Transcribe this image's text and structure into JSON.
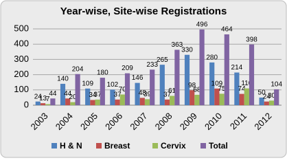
{
  "chart_data": {
    "type": "bar",
    "title": "Year-wise, Site-wise Registrations",
    "categories": [
      "2003",
      "2004",
      "2005",
      "2006",
      "2007",
      "2008",
      "2009",
      "2010",
      "2011",
      "2012"
    ],
    "series": [
      {
        "name": "H & N",
        "color": "#4f81bd",
        "values": [
          24,
          140,
          109,
          102,
          146,
          265,
          330,
          280,
          214,
          50
        ]
      },
      {
        "name": "Breast",
        "color": "#c0504d",
        "values": [
          13,
          44,
          34,
          37,
          48,
          37,
          98,
          109,
          74,
          24
        ]
      },
      {
        "name": "Cervix",
        "color": "#9bbb59",
        "values": [
          7,
          20,
          37,
          70,
          39,
          61,
          68,
          75,
          110,
          30
        ]
      },
      {
        "name": "Total",
        "color": "#8064a2",
        "values": [
          44,
          204,
          180,
          209,
          233,
          363,
          496,
          464,
          398,
          104
        ]
      }
    ],
    "ylim": [
      0,
      500
    ],
    "yticks": [
      0,
      100,
      200,
      300,
      400,
      500
    ],
    "grid": true,
    "legend": "bottom"
  }
}
